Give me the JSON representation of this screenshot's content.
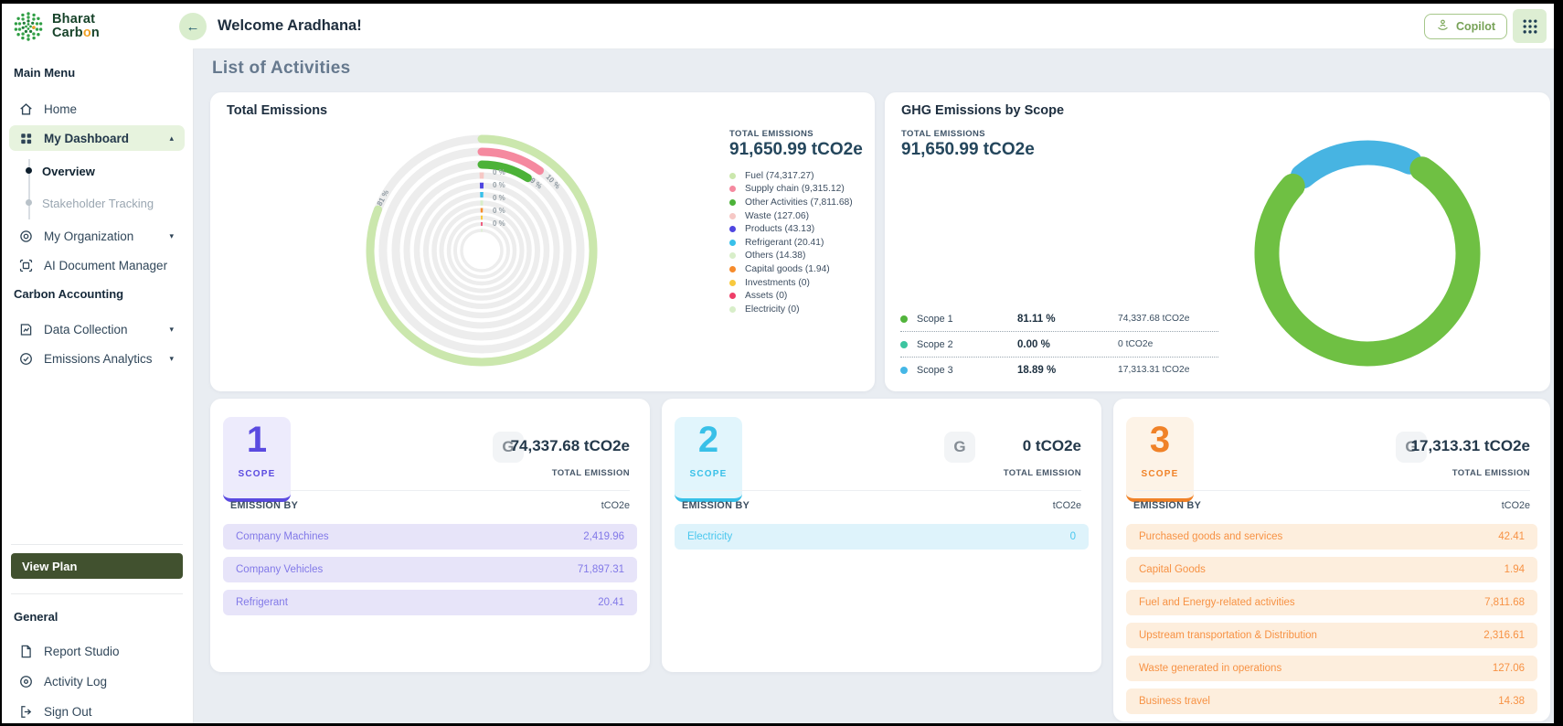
{
  "icons": {
    "back_arrow": "←",
    "caret_up": "▴",
    "caret_down": "▾"
  },
  "header": {
    "welcome_title": "Welcome Aradhana!",
    "copilot_label": "Copilot"
  },
  "sidebar": {
    "logo_line1": "Bharat",
    "logo_line2_pre": "Carb",
    "logo_line2_o": "o",
    "logo_line2_post": "n",
    "main_menu_label": "Main Menu",
    "carbon_accounting_label": "Carbon Accounting",
    "general_label": "General",
    "view_plan_label": "View Plan",
    "items": {
      "home": "Home",
      "my_dashboard": "My Dashboard",
      "overview": "Overview",
      "stakeholder_tracking": "Stakeholder Tracking",
      "my_organization": "My Organization",
      "ai_document_manager": "AI Document Manager",
      "data_collection": "Data Collection",
      "emissions_analytics": "Emissions Analytics",
      "report_studio": "Report Studio",
      "activity_log": "Activity Log",
      "sign_out": "Sign Out"
    }
  },
  "page": {
    "heading": "List of Activities"
  },
  "total_emissions_card": {
    "title": "Total Emissions",
    "total_label": "TOTAL EMISSIONS",
    "total_value": "91,650.99 tCO2e",
    "legend": [
      {
        "label": "Fuel (74,317.27)",
        "color": "#cbe7ad"
      },
      {
        "label": "Supply chain (9,315.12)",
        "color": "#f5899f"
      },
      {
        "label": "Other Activities (7,811.68)",
        "color": "#4cb238"
      },
      {
        "label": "Waste (127.06)",
        "color": "#f6c8c5"
      },
      {
        "label": "Products (43.13)",
        "color": "#4f46e0"
      },
      {
        "label": "Refrigerant (20.41)",
        "color": "#38c0ea"
      },
      {
        "label": "Others (14.38)",
        "color": "#d8eec9"
      },
      {
        "label": "Capital goods (1.94)",
        "color": "#f68b2c"
      },
      {
        "label": "Investments (0)",
        "color": "#f8c93e"
      },
      {
        "label": "Assets (0)",
        "color": "#ee3e68"
      },
      {
        "label": "Electricity (0)",
        "color": "#d8eec9"
      }
    ]
  },
  "ghg_card": {
    "title": "GHG Emissions by Scope",
    "total_label": "TOTAL EMISSIONS",
    "total_value": "91,650.99 tCO2e",
    "rows": [
      {
        "name": "Scope 1",
        "pct": "81.11 %",
        "value": "74,337.68 tCO2e",
        "dot_color": "#52b43c"
      },
      {
        "name": "Scope 2",
        "pct": "0.00 %",
        "value": "0 tCO2e",
        "dot_color": "#3cc5a0"
      },
      {
        "name": "Scope 3",
        "pct": "18.89 %",
        "value": "17,313.31 tCO2e",
        "dot_color": "#45b7e6"
      }
    ]
  },
  "scope_cards": [
    {
      "number": "1",
      "scope_label": "SCOPE",
      "total_value": "74,337.68 tCO2e",
      "total_label": "TOTAL EMISSION",
      "emission_by_label": "EMISSION BY",
      "unit_label": "tCO2e",
      "theme": {
        "accent": "#5a4ae0",
        "text": "#8279e8",
        "row_bg": "#e7e4f9",
        "badge_bg": "#edebfc"
      },
      "rows": [
        {
          "name": "Company Machines",
          "value": "2,419.96"
        },
        {
          "name": "Company Vehicles",
          "value": "71,897.31"
        },
        {
          "name": "Refrigerant",
          "value": "20.41"
        }
      ]
    },
    {
      "number": "2",
      "scope_label": "SCOPE",
      "total_value": "0 tCO2e",
      "total_label": "TOTAL EMISSION",
      "emission_by_label": "EMISSION BY",
      "unit_label": "tCO2e",
      "theme": {
        "accent": "#38c0e8",
        "text": "#49c7ee",
        "row_bg": "#def3fb",
        "badge_bg": "#e1f5fc"
      },
      "rows": [
        {
          "name": "Electricity",
          "value": "0"
        }
      ]
    },
    {
      "number": "3",
      "scope_label": "SCOPE",
      "total_value": "17,313.31 tCO2e",
      "total_label": "TOTAL EMISSION",
      "emission_by_label": "EMISSION BY",
      "unit_label": "tCO2e",
      "theme": {
        "accent": "#f08228",
        "text": "#f79244",
        "row_bg": "#fdeedd",
        "badge_bg": "#fdf3e7"
      },
      "rows": [
        {
          "name": "Purchased goods and services",
          "value": "42.41"
        },
        {
          "name": "Capital Goods",
          "value": "1.94"
        },
        {
          "name": "Fuel and Energy-related activities",
          "value": "7,811.68"
        },
        {
          "name": "Upstream transportation & Distribution",
          "value": "2,316.61"
        },
        {
          "name": "Waste generated in operations",
          "value": "127.06"
        },
        {
          "name": "Business travel",
          "value": "14.38"
        }
      ]
    }
  ],
  "chart_data": [
    {
      "type": "radial-rings",
      "title": "Total Emissions",
      "total": "91,650.99 tCO2e",
      "rings": [
        {
          "label": "Fuel",
          "value": 74317.27,
          "pct": 81,
          "color": "#cbe7ad"
        },
        {
          "label": "Supply chain",
          "value": 9315.12,
          "pct": 10,
          "color": "#f5899f"
        },
        {
          "label": "Other Activities",
          "value": 7811.68,
          "pct": 9,
          "color": "#4cb238"
        },
        {
          "label": "Waste",
          "value": 127.06,
          "pct": 0,
          "color": "#f6c8c5"
        },
        {
          "label": "Products",
          "value": 43.13,
          "pct": 0,
          "color": "#4f46e0"
        },
        {
          "label": "Refrigerant",
          "value": 20.41,
          "pct": 0,
          "color": "#38c0ea"
        },
        {
          "label": "Others",
          "value": 14.38,
          "pct": 0,
          "color": "#d8eec9"
        },
        {
          "label": "Capital goods",
          "value": 1.94,
          "pct": 0,
          "color": "#f68b2c"
        },
        {
          "label": "Investments",
          "value": 0,
          "pct": 0,
          "color": "#f8c93e"
        },
        {
          "label": "Assets",
          "value": 0,
          "pct": 0,
          "color": "#ee3e68"
        },
        {
          "label": "Electricity",
          "value": 0,
          "pct": 0,
          "color": "#d8eec9"
        }
      ]
    },
    {
      "type": "donut",
      "title": "GHG Emissions by Scope",
      "total": "91,650.99 tCO2e",
      "slices": [
        {
          "label": "Scope 1",
          "pct": 81.11,
          "value": "74,337.68 tCO2e",
          "color": "#6fc043"
        },
        {
          "label": "Scope 2",
          "pct": 0.0,
          "value": "0 tCO2e",
          "color": "#3cc5a0"
        },
        {
          "label": "Scope 3",
          "pct": 18.89,
          "value": "17,313.31 tCO2e",
          "color": "#47b4e2"
        }
      ]
    }
  ]
}
